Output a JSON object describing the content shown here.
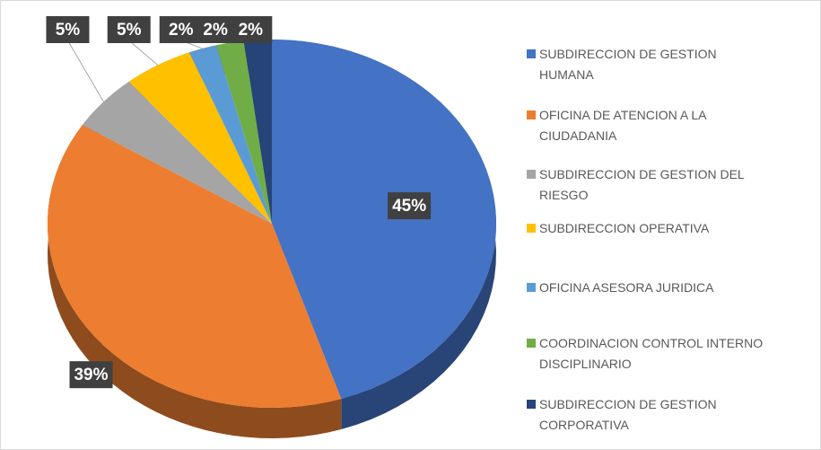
{
  "chart_data": {
    "type": "pie",
    "categories": [
      "SUBDIRECCION DE GESTION HUMANA",
      "OFICINA DE ATENCION A LA CIUDADANIA",
      "SUBDIRECCION DE GESTION DEL RIESGO",
      "SUBDIRECCION OPERATIVA",
      "OFICINA ASESORA JURIDICA",
      "COORDINACION  CONTROL INTERNO DISCIPLINARIO",
      "SUBDIRECCION DE GESTION CORPORATIVA"
    ],
    "values": [
      45,
      39,
      5,
      5,
      2,
      2,
      2
    ],
    "value_labels": [
      "45%",
      "39%",
      "5%",
      "5%",
      "2%",
      "2%",
      "2%"
    ],
    "colors": [
      "#4472c4",
      "#ed7d31",
      "#a5a5a5",
      "#ffc000",
      "#5b9bd5",
      "#70ad47",
      "#264478"
    ],
    "legend": "right"
  }
}
